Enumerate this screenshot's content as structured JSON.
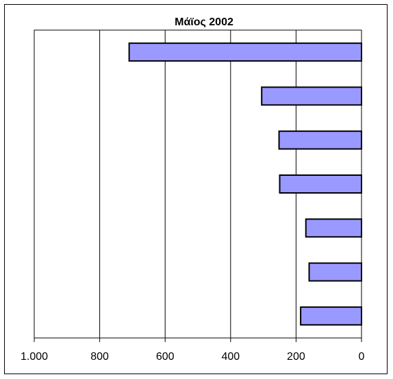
{
  "chart_data": {
    "type": "bar",
    "orientation": "horizontal",
    "title": "Μάϊος 2002",
    "xlabel": "",
    "ylabel": "",
    "x_reversed": true,
    "xlim": [
      0,
      1000
    ],
    "x_ticks": [
      1000,
      800,
      600,
      400,
      200,
      0
    ],
    "x_tick_labels": [
      "1.000",
      "800",
      "600",
      "400",
      "200",
      "0"
    ],
    "categories": [
      "",
      "",
      "",
      "",
      "",
      "",
      ""
    ],
    "values": [
      710,
      305,
      252,
      250,
      170,
      160,
      186
    ],
    "grid": true,
    "legend": "none",
    "bar_color": "#9999ff",
    "bar_border_color": "#000000"
  }
}
